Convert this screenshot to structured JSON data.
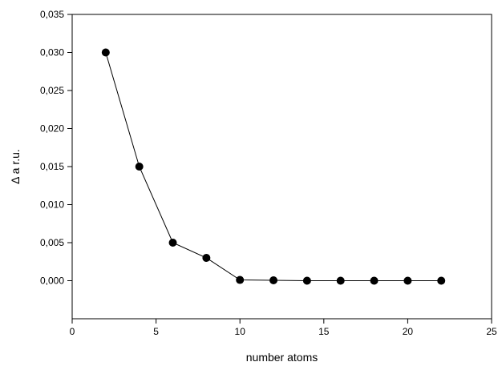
{
  "chart_data": {
    "type": "line",
    "title": "",
    "xlabel": "number atoms",
    "ylabel": "Δ a r.u.",
    "xlim": [
      0,
      25
    ],
    "ylim": [
      -0.005,
      0.035
    ],
    "x_ticks": [
      0,
      5,
      10,
      15,
      20,
      25
    ],
    "x_tick_labels": [
      "0",
      "5",
      "10",
      "15",
      "20",
      "25"
    ],
    "y_ticks": [
      0.0,
      0.005,
      0.01,
      0.015,
      0.02,
      0.025,
      0.03,
      0.035
    ],
    "y_tick_labels": [
      "0,000",
      "0,005",
      "0,010",
      "0,015",
      "0,020",
      "0,025",
      "0,030",
      "0,035"
    ],
    "grid": false,
    "legend": "none",
    "series": [
      {
        "x": [
          2,
          4,
          6,
          8,
          10,
          12,
          14,
          16,
          18,
          20,
          22
        ],
        "y": [
          0.03,
          0.015,
          0.005,
          0.003,
          0.0001,
          5e-05,
          0.0,
          0.0,
          0.0,
          0.0,
          0.0
        ],
        "color": "#000000",
        "marker": "filled-circle"
      }
    ]
  }
}
